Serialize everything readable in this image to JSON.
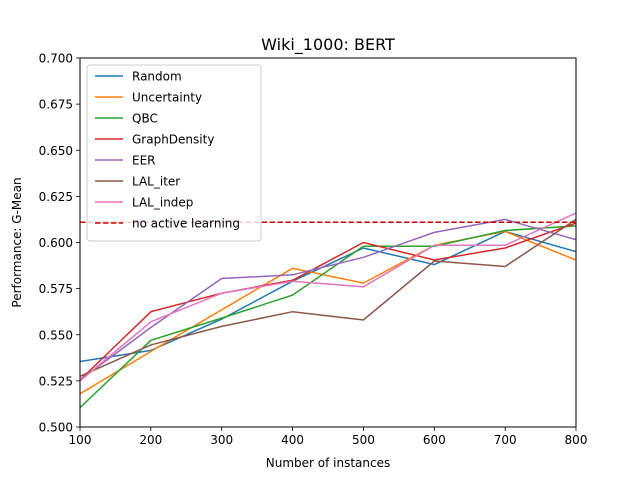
{
  "chart_data": {
    "type": "line",
    "title": "Wiki_1000: BERT",
    "xlabel": "Number of instances",
    "ylabel": "Performance: G-Mean",
    "xlim": [
      100,
      800
    ],
    "ylim": [
      0.5,
      0.7
    ],
    "x_ticks": [
      "100",
      "200",
      "300",
      "400",
      "500",
      "600",
      "700",
      "800"
    ],
    "y_ticks": [
      "0.500",
      "0.525",
      "0.550",
      "0.575",
      "0.600",
      "0.625",
      "0.650",
      "0.675",
      "0.700"
    ],
    "grid": false,
    "legend_position": "upper-left",
    "x": [
      100,
      200,
      300,
      400,
      500,
      600,
      700,
      800
    ],
    "series": [
      {
        "name": "Random",
        "color": "#1f77b4",
        "style": "solid",
        "values": [
          0.5355,
          0.5415,
          0.5585,
          0.579,
          0.597,
          0.588,
          0.606,
          0.595
        ]
      },
      {
        "name": "Uncertainty",
        "color": "#ff7f0e",
        "style": "solid",
        "values": [
          0.518,
          0.541,
          0.5635,
          0.586,
          0.578,
          0.5985,
          0.606,
          0.5905
        ]
      },
      {
        "name": "QBC",
        "color": "#2ca02c",
        "style": "solid",
        "values": [
          0.5105,
          0.547,
          0.559,
          0.5715,
          0.598,
          0.598,
          0.6065,
          0.609
        ]
      },
      {
        "name": "GraphDensity",
        "color": "#d62728",
        "style": "solid",
        "values": [
          0.5255,
          0.5625,
          0.5725,
          0.5795,
          0.6,
          0.5905,
          0.597,
          0.6105
        ]
      },
      {
        "name": "EER",
        "color": "#9467bd",
        "style": "solid",
        "values": [
          0.5255,
          0.554,
          0.5805,
          0.5825,
          0.592,
          0.6055,
          0.6125,
          0.6015
        ]
      },
      {
        "name": "LAL_iter",
        "color": "#8c564b",
        "style": "solid",
        "values": [
          0.5275,
          0.5445,
          0.5545,
          0.5625,
          0.558,
          0.59,
          0.587,
          0.6125
        ]
      },
      {
        "name": "LAL_indep",
        "color": "#e377c2",
        "style": "solid",
        "values": [
          0.525,
          0.557,
          0.5725,
          0.579,
          0.576,
          0.5985,
          0.5985,
          0.616
        ]
      },
      {
        "name": "no active learning",
        "color": "#d10000",
        "style": "dashed",
        "values": [
          0.611,
          0.611,
          0.611,
          0.611,
          0.611,
          0.611,
          0.611,
          0.611
        ]
      }
    ]
  }
}
